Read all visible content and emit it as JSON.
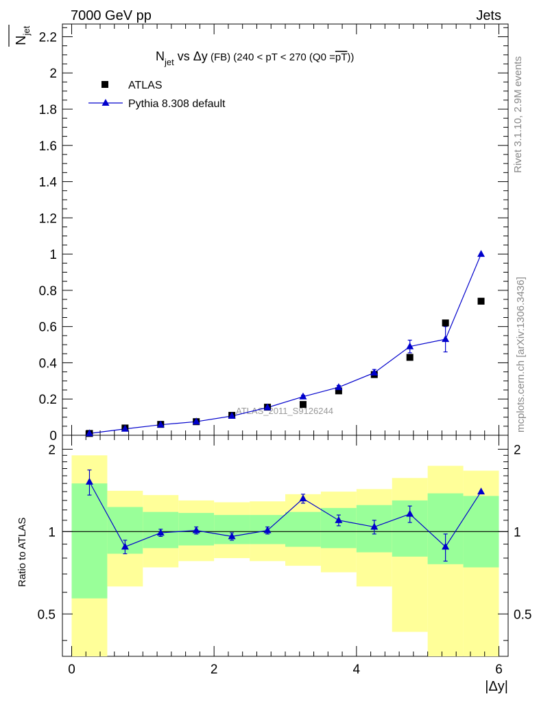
{
  "header": {
    "energy_label": "7000 GeV pp",
    "category_label": "Jets"
  },
  "side_labels": {
    "rivet": "Rivet 3.1.10,  2.9M events",
    "mcplots": "mcplots.cern.ch [arXiv:1306.3436]"
  },
  "watermark": "ATLAS_2011_S9126244",
  "title": {
    "n": "N",
    "jet_sub": "jet",
    "vs": " vs ",
    "delta_y": "Δy",
    "fb": " (FB) ",
    "cuts": "(240 < pT < 270 (Q0 =",
    "over_pt": "pT",
    "close": "))"
  },
  "legend": {
    "data_label": "ATLAS",
    "mc_label": "Pythia 8.308 default"
  },
  "colors": {
    "mc": "#0000cc",
    "data": "#000000",
    "band_inner": "#99ff99",
    "band_outer": "#ffff99"
  },
  "chart_data": {
    "type": "scatter",
    "x_label": "|Δy|",
    "upper": {
      "ylabel_main": "N",
      "ylabel_sub": "jet",
      "xlim": [
        -0.13,
        6.13
      ],
      "ylim": [
        0,
        2.27
      ],
      "yticks": [
        "0",
        "0.2",
        "0.4",
        "0.6",
        "0.8",
        "1",
        "1.2",
        "1.4",
        "1.6",
        "1.8",
        "2",
        "2.2"
      ],
      "data": {
        "name": "ATLAS",
        "x": [
          0.25,
          0.75,
          1.25,
          1.75,
          2.25,
          2.75,
          3.25,
          3.75,
          4.25,
          4.75,
          5.25,
          5.75
        ],
        "y": [
          0.01,
          0.04,
          0.06,
          0.075,
          0.11,
          0.155,
          0.17,
          0.245,
          0.335,
          0.43,
          0.62,
          0.74
        ]
      },
      "mc": {
        "name": "Pythia 8.308 default",
        "x": [
          0.25,
          0.75,
          1.25,
          1.75,
          2.25,
          2.75,
          3.25,
          3.75,
          4.25,
          4.75,
          5.25,
          5.75
        ],
        "y": [
          0.01,
          0.035,
          0.058,
          0.075,
          0.106,
          0.153,
          0.213,
          0.265,
          0.345,
          0.49,
          0.53,
          1.0
        ],
        "err": [
          0.002,
          0.003,
          0.004,
          0.004,
          0.005,
          0.006,
          0.008,
          0.01,
          0.018,
          0.035,
          0.07,
          0.0
        ]
      }
    },
    "ratio": {
      "ylabel": "Ratio to ATLAS",
      "ylim": [
        0.35,
        2.25
      ],
      "log": true,
      "yticks": [
        "0.5",
        "1",
        "2"
      ],
      "xticks": [
        "0",
        "2",
        "4",
        "6"
      ],
      "edges": [
        0,
        0.5,
        1.0,
        1.5,
        2.0,
        2.5,
        3.0,
        3.5,
        4.0,
        4.5,
        5.0,
        5.5,
        6.0
      ],
      "band_inner_lo": [
        0.57,
        0.83,
        0.87,
        0.89,
        0.9,
        0.9,
        0.88,
        0.87,
        0.84,
        0.81,
        0.76,
        0.74
      ],
      "band_inner_hi": [
        1.5,
        1.23,
        1.18,
        1.17,
        1.15,
        1.15,
        1.18,
        1.22,
        1.25,
        1.3,
        1.38,
        1.35
      ],
      "band_outer_lo": [
        0.35,
        0.63,
        0.74,
        0.78,
        0.8,
        0.78,
        0.75,
        0.71,
        0.63,
        0.43,
        0.35,
        0.35
      ],
      "band_outer_hi": [
        1.9,
        1.41,
        1.36,
        1.3,
        1.28,
        1.29,
        1.37,
        1.4,
        1.43,
        1.57,
        1.74,
        1.67
      ],
      "mc": {
        "x": [
          0.25,
          0.75,
          1.25,
          1.75,
          2.25,
          2.75,
          3.25,
          3.75,
          4.25,
          4.75,
          5.25,
          5.75
        ],
        "y": [
          1.52,
          0.88,
          0.99,
          1.01,
          0.96,
          1.01,
          1.32,
          1.1,
          1.04,
          1.16,
          0.88,
          1.4
        ],
        "err": [
          0.16,
          0.05,
          0.03,
          0.03,
          0.03,
          0.03,
          0.05,
          0.05,
          0.06,
          0.08,
          0.1,
          0.0
        ]
      }
    }
  }
}
